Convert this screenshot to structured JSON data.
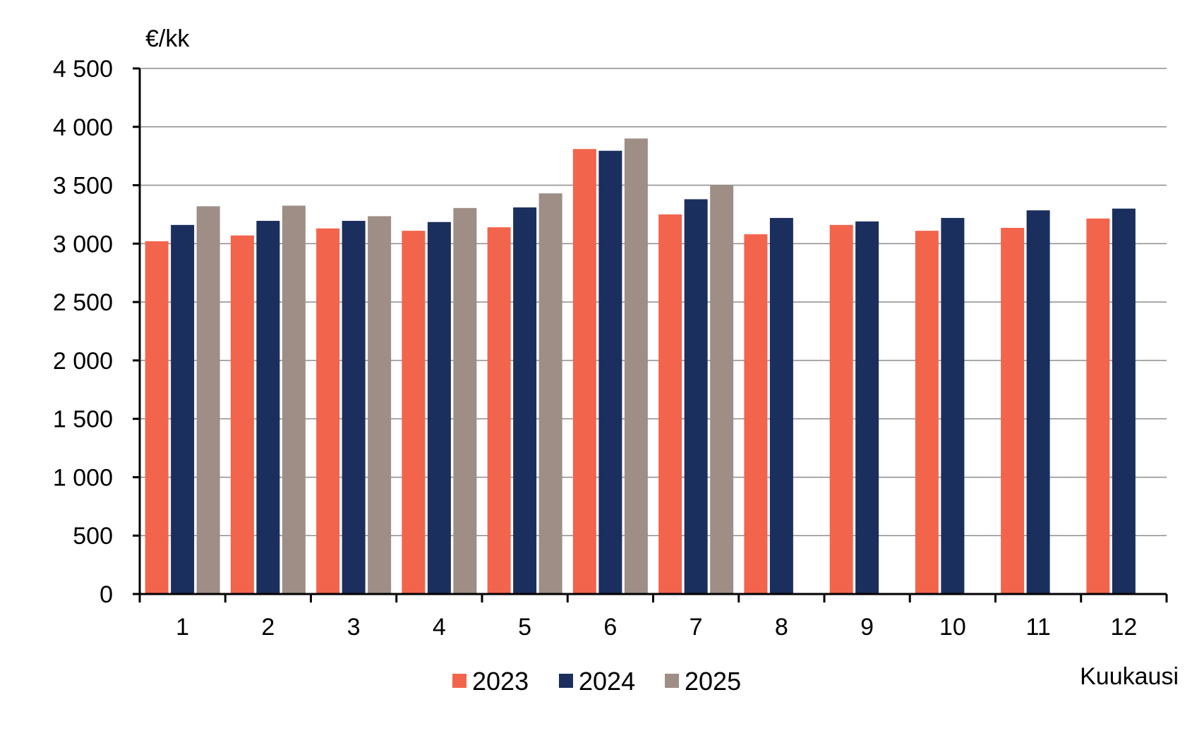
{
  "chart_data": {
    "type": "bar",
    "title": "",
    "ylabel": "€/kk",
    "xlabel": "Kuukausi",
    "categories": [
      "1",
      "2",
      "3",
      "4",
      "5",
      "6",
      "7",
      "8",
      "9",
      "10",
      "11",
      "12"
    ],
    "series": [
      {
        "name": "2023",
        "color": "#f2644c",
        "values": [
          3020,
          3070,
          3130,
          3110,
          3140,
          3810,
          3250,
          3080,
          3160,
          3110,
          3135,
          3215
        ]
      },
      {
        "name": "2024",
        "color": "#1b2f5e",
        "values": [
          3160,
          3195,
          3195,
          3185,
          3310,
          3795,
          3380,
          3220,
          3190,
          3220,
          3285,
          3300
        ]
      },
      {
        "name": "2025",
        "color": "#9e8e86",
        "values": [
          3320,
          3325,
          3235,
          3305,
          3430,
          3900,
          3500,
          null,
          null,
          null,
          null,
          null
        ]
      }
    ],
    "ylim": [
      0,
      4500
    ],
    "yticks": [
      0,
      500,
      1000,
      1500,
      2000,
      2500,
      3000,
      3500,
      4000,
      4500
    ],
    "ytick_labels": [
      "0",
      "500",
      "1 000",
      "1 500",
      "2 000",
      "2 500",
      "3 000",
      "3 500",
      "4 000",
      "4 500"
    ],
    "grid": true,
    "legend_position": "bottom-center"
  }
}
